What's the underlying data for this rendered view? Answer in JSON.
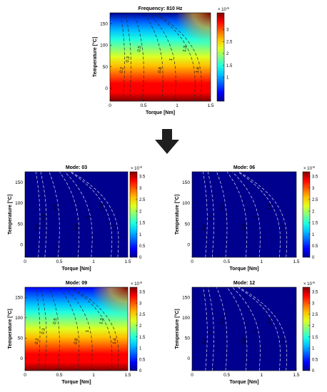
{
  "arrow_color": "#1f1f1f",
  "colormap": "jet",
  "contour_labels": [
    "0.2",
    "0.3",
    "0.5",
    "0.8",
    "1",
    "1.3",
    "1.4"
  ],
  "chart_data": [
    {
      "type": "heatmap",
      "title": "Frequency: 810 Hz",
      "xlabel": "Torque [Nm]",
      "ylabel": "Temperature [°C]",
      "xlim": [
        0,
        1.5
      ],
      "ylim": [
        -30,
        175
      ],
      "xticks": [
        "0",
        "0.5",
        "1",
        "1.5"
      ],
      "yticks": [
        "0",
        "50",
        "100",
        "150"
      ],
      "colorbar": {
        "range": [
          0,
          3.7
        ],
        "ticks": [
          "1",
          "1.5",
          "2",
          "2.5",
          "3"
        ],
        "exponent": "× 10^-9"
      },
      "field": {
        "kind": "gradient",
        "value_at_bottom": 3.6,
        "value_at_top": 0.15,
        "corner_highlight": 3.6
      },
      "contour_torques": [
        0.2,
        0.3,
        0.5,
        0.8,
        1.0,
        1.3,
        1.4
      ]
    },
    {
      "type": "heatmap",
      "title": "Mode: 03",
      "xlabel": "Torque [Nm]",
      "ylabel": "Temperature [°C]",
      "xlim": [
        0,
        1.5
      ],
      "ylim": [
        -30,
        175
      ],
      "xticks": [
        "0",
        "0.5",
        "1",
        "1.5"
      ],
      "yticks": [
        "0",
        "50",
        "100",
        "150"
      ],
      "colorbar": {
        "range": [
          0,
          3.7
        ],
        "ticks": [
          "0",
          "0.5",
          "1",
          "1.5",
          "2",
          "2.5",
          "3",
          "3.5"
        ],
        "exponent": "× 10^-9"
      },
      "field": {
        "kind": "uniform",
        "value": 0.1
      },
      "contour_torques": [
        0.2,
        0.3,
        0.5,
        0.8,
        1.0,
        1.3,
        1.4
      ]
    },
    {
      "type": "heatmap",
      "title": "Mode: 06",
      "xlabel": "Torque [Nm]",
      "ylabel": "Temperature [°C]",
      "xlim": [
        0,
        1.5
      ],
      "ylim": [
        -30,
        175
      ],
      "xticks": [
        "0",
        "0.5",
        "1",
        "1.5"
      ],
      "yticks": [
        "0",
        "50",
        "100",
        "150"
      ],
      "colorbar": {
        "range": [
          0,
          3.7
        ],
        "ticks": [
          "0",
          "0.5",
          "1",
          "1.5",
          "2",
          "2.5",
          "3",
          "3.5"
        ],
        "exponent": "× 10^-9"
      },
      "field": {
        "kind": "uniform",
        "value": 0.1
      },
      "contour_torques": [
        0.2,
        0.3,
        0.5,
        0.8,
        1.0,
        1.3,
        1.4
      ]
    },
    {
      "type": "heatmap",
      "title": "Mode: 09",
      "xlabel": "Torque [Nm]",
      "ylabel": "Temperature [°C]",
      "xlim": [
        0,
        1.5
      ],
      "ylim": [
        -30,
        175
      ],
      "xticks": [
        "0",
        "0.5",
        "1",
        "1.5"
      ],
      "yticks": [
        "0",
        "50",
        "100",
        "150"
      ],
      "colorbar": {
        "range": [
          0,
          3.7
        ],
        "ticks": [
          "0",
          "0.5",
          "1",
          "1.5",
          "2",
          "2.5",
          "3",
          "3.5"
        ],
        "exponent": "× 10^-9"
      },
      "field": {
        "kind": "gradient",
        "value_at_bottom": 3.6,
        "value_at_top": 0.3,
        "corner_highlight": 3.6
      },
      "contour_torques": [
        0.2,
        0.3,
        0.5,
        0.8,
        1.0,
        1.3,
        1.4
      ]
    },
    {
      "type": "heatmap",
      "title": "Mode: 12",
      "xlabel": "Torque [Nm]",
      "ylabel": "Temperature [°C]",
      "xlim": [
        0,
        1.5
      ],
      "ylim": [
        -30,
        175
      ],
      "xticks": [
        "0",
        "0.5",
        "1",
        "1.5"
      ],
      "yticks": [
        "0",
        "50",
        "100",
        "150"
      ],
      "colorbar": {
        "range": [
          0,
          3.7
        ],
        "ticks": [
          "0",
          "0.5",
          "1",
          "1.5",
          "2",
          "2.5",
          "3",
          "3.5"
        ],
        "exponent": "× 10^-9"
      },
      "field": {
        "kind": "uniform",
        "value": 0.1
      },
      "contour_torques": [
        0.2,
        0.3,
        0.5,
        0.8,
        1.0,
        1.3,
        1.4
      ]
    }
  ]
}
